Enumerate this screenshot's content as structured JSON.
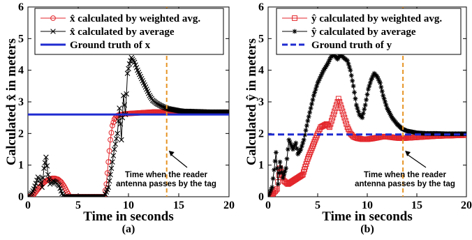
{
  "chart_data": [
    {
      "type": "line",
      "panel": "(a)",
      "xlabel": "Time in seconds",
      "ylabel": "Calculated x̂ in meters",
      "xlim": [
        0,
        20
      ],
      "ylim": [
        0,
        6
      ],
      "xticks": [
        "0",
        "5",
        "10",
        "15",
        "20"
      ],
      "yticks": [
        "0",
        "1",
        "2",
        "3",
        "4",
        "5",
        "6"
      ],
      "legend_position": "top",
      "vline": {
        "x": 13.8,
        "color": "#e69526"
      },
      "annotation": [
        "Time when the reader",
        "antenna passes by the tag"
      ],
      "series": [
        {
          "name": "x̂ calculated by weighted avg.",
          "color": "#e3262b",
          "marker": "circle",
          "x": [
            0,
            0.3,
            0.6,
            0.9,
            1.2,
            1.5,
            1.8,
            2.1,
            2.4,
            2.7,
            3.0,
            3.3,
            3.6,
            3.9,
            4.1,
            4.2,
            7.6,
            7.8,
            8.0,
            8.2,
            8.4,
            8.6,
            8.8,
            9.0,
            9.3,
            9.6,
            10,
            10.5,
            11,
            11.5,
            12,
            12.5,
            13,
            13.5,
            14,
            14.5,
            15,
            15.5,
            16,
            17,
            18,
            19,
            20
          ],
          "y": [
            0,
            0.02,
            0.08,
            0.2,
            0.32,
            0.42,
            0.5,
            0.55,
            0.58,
            0.58,
            0.55,
            0.47,
            0.33,
            0.15,
            0.03,
            0,
            0,
            0.4,
            1.1,
            1.8,
            2.25,
            2.45,
            2.55,
            2.58,
            2.6,
            2.62,
            2.63,
            2.64,
            2.65,
            2.66,
            2.67,
            2.68,
            2.68,
            2.69,
            2.69,
            2.69,
            2.69,
            2.68,
            2.68,
            2.68,
            2.67,
            2.67,
            2.67
          ]
        },
        {
          "name": "x̂ calculated by average",
          "color": "#000000",
          "marker": "x",
          "x": [
            0,
            0.2,
            0.4,
            0.6,
            0.8,
            1.0,
            1.2,
            1.4,
            1.6,
            1.8,
            2.0,
            2.2,
            2.5,
            2.8,
            3.1,
            3.4,
            3.6,
            7.6,
            8.0,
            8.3,
            8.6,
            8.9,
            9.1,
            9.3,
            9.5,
            9.7,
            9.9,
            10.1,
            10.3,
            10.6,
            10.9,
            11.2,
            11.5,
            11.8,
            12.1,
            12.4,
            12.8,
            13.2,
            13.6,
            14,
            14.5,
            15,
            15.5,
            16,
            17,
            18,
            19,
            20
          ],
          "y": [
            0,
            0.05,
            0.12,
            0.25,
            0.42,
            0.62,
            0.55,
            0.3,
            0.9,
            1.25,
            0.7,
            0.4,
            0.5,
            0.45,
            0.35,
            0.1,
            0,
            0,
            0.3,
            0.9,
            1.5,
            2.0,
            2.8,
            1.8,
            3.2,
            2.6,
            3.9,
            4.2,
            4.4,
            4.25,
            4.0,
            3.8,
            3.6,
            3.4,
            3.2,
            3.05,
            2.95,
            2.88,
            2.82,
            2.78,
            2.75,
            2.72,
            2.7,
            2.7,
            2.69,
            2.68,
            2.68,
            2.68
          ]
        },
        {
          "name": "Ground truth of x",
          "color": "#1f2bd1",
          "style": "solid",
          "x": [
            0,
            20
          ],
          "y": [
            2.6,
            2.6
          ]
        }
      ]
    },
    {
      "type": "line",
      "panel": "(b)",
      "xlabel": "Time in seconds",
      "ylabel": "Calculated ŷ in meters",
      "xlim": [
        0,
        20
      ],
      "ylim": [
        0,
        6
      ],
      "xticks": [
        "0",
        "5",
        "10",
        "15",
        "20"
      ],
      "yticks": [
        "0",
        "1",
        "2",
        "3",
        "4",
        "5",
        "6"
      ],
      "legend_position": "top",
      "vline": {
        "x": 13.6,
        "color": "#e69526"
      },
      "annotation": [
        "Time when the reader",
        "antenna passes by the tag"
      ],
      "series": [
        {
          "name": "ŷ calculated by weighted avg.",
          "color": "#e3262b",
          "marker": "square",
          "x": [
            0,
            0.5,
            0.9,
            1.2,
            1.6,
            2.0,
            2.5,
            3.0,
            3.5,
            4.0,
            4.5,
            5.0,
            5.3,
            5.6,
            5.9,
            6.2,
            6.5,
            6.8,
            7.1,
            7.4,
            7.7,
            8.0,
            8.3,
            8.6,
            9.0,
            9.5,
            10,
            10.5,
            11,
            11.5,
            12,
            12.5,
            13,
            13.5,
            14,
            15,
            16,
            17,
            18,
            19,
            20
          ],
          "y": [
            0,
            0.1,
            0.25,
            0.9,
            0.5,
            0.4,
            0.5,
            0.6,
            0.7,
            1.2,
            1.6,
            2.0,
            2.2,
            2.25,
            2.3,
            2.2,
            2.5,
            2.8,
            3.1,
            2.8,
            2.5,
            2.2,
            2.0,
            1.9,
            1.85,
            1.82,
            1.82,
            1.84,
            1.87,
            1.9,
            1.9,
            1.88,
            1.86,
            1.85,
            1.86,
            1.88,
            1.9,
            1.92,
            1.93,
            1.94,
            1.95
          ]
        },
        {
          "name": "ŷ calculated by average",
          "color": "#000000",
          "marker": "star",
          "x": [
            0,
            0.4,
            0.8,
            1.0,
            1.2,
            1.5,
            1.8,
            2.1,
            2.5,
            2.8,
            3.0,
            3.3,
            3.6,
            4.0,
            4.3,
            4.6,
            5.0,
            5.3,
            5.6,
            6.0,
            6.3,
            6.6,
            7.0,
            7.3,
            7.6,
            8.0,
            8.3,
            8.6,
            8.9,
            9.2,
            9.5,
            9.8,
            10.1,
            10.4,
            10.7,
            11.0,
            11.3,
            11.6,
            12.0,
            12.5,
            13,
            13.5,
            14,
            15,
            16,
            17,
            18,
            19,
            20
          ],
          "y": [
            0,
            0.3,
            1.4,
            0.4,
            1.1,
            0.6,
            0.9,
            1.8,
            1.5,
            1.7,
            1.35,
            1.5,
            1.8,
            2.4,
            2.8,
            3.2,
            3.6,
            3.8,
            4.0,
            4.2,
            4.4,
            4.5,
            4.35,
            4.5,
            4.4,
            4.3,
            4.0,
            3.5,
            2.9,
            2.6,
            2.5,
            2.9,
            3.4,
            3.7,
            3.9,
            3.8,
            3.6,
            3.2,
            2.8,
            2.5,
            2.3,
            2.15,
            2.08,
            2.02,
            2.0,
            2.0,
            1.99,
            1.99,
            1.99
          ]
        },
        {
          "name": "Ground truth of y",
          "color": "#1f2bd1",
          "style": "dashed",
          "x": [
            0,
            20
          ],
          "y": [
            1.97,
            1.97
          ]
        }
      ]
    }
  ]
}
